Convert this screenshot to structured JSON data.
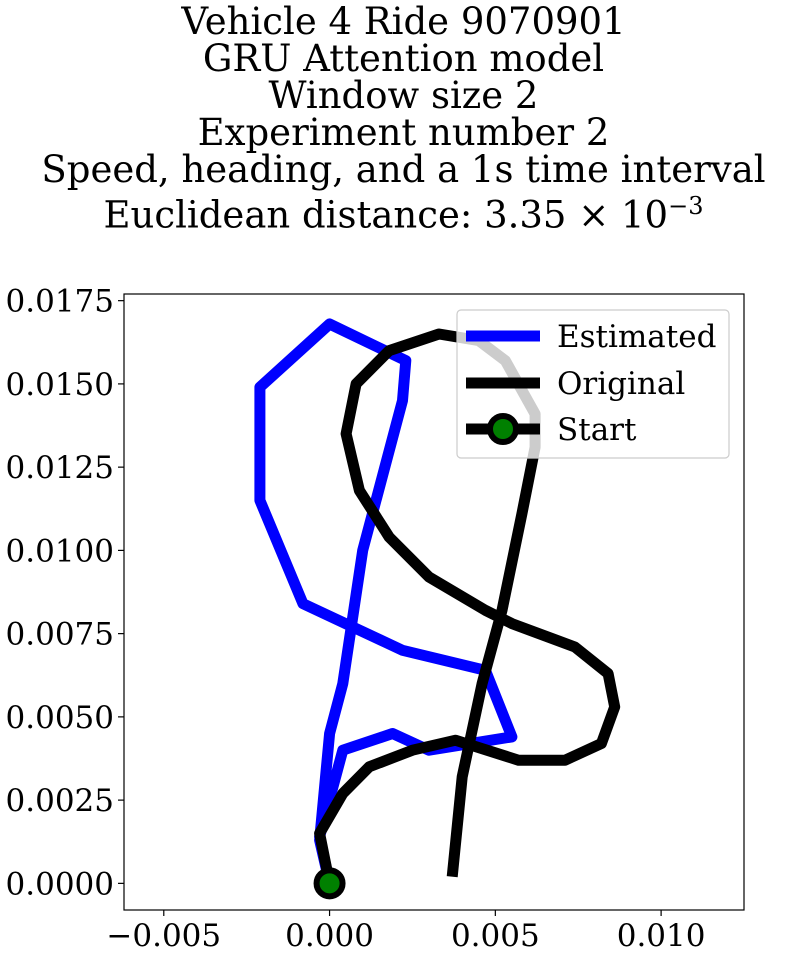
{
  "chart_data": {
    "type": "line",
    "title_lines": [
      "Vehicle 4 Ride 9070901",
      "GRU Attention model",
      "Window size 2",
      "Experiment number 2",
      "Speed, heading, and a 1s time interval"
    ],
    "metric_label": "Euclidean distance: 3.35 × 10",
    "metric_exponent": "−3",
    "xlim": [
      -0.0062,
      0.0125
    ],
    "ylim": [
      -0.0008,
      0.0177
    ],
    "x_ticks": [
      {
        "value": -0.005,
        "label": "−0.005"
      },
      {
        "value": 0.0,
        "label": "0.000"
      },
      {
        "value": 0.005,
        "label": "0.005"
      },
      {
        "value": 0.01,
        "label": "0.010"
      }
    ],
    "y_ticks": [
      {
        "value": 0.0,
        "label": "0.0000"
      },
      {
        "value": 0.0025,
        "label": "0.0025"
      },
      {
        "value": 0.005,
        "label": "0.0050"
      },
      {
        "value": 0.0075,
        "label": "0.0075"
      },
      {
        "value": 0.01,
        "label": "0.0100"
      },
      {
        "value": 0.0125,
        "label": "0.0125"
      },
      {
        "value": 0.015,
        "label": "0.0150"
      },
      {
        "value": 0.0175,
        "label": "0.0175"
      }
    ],
    "grid": false,
    "legend_position": "top-right",
    "series": [
      {
        "name": "Estimated",
        "color": "#0000ff",
        "points": [
          [
            0.0,
            0.0
          ],
          [
            -0.0003,
            0.0013
          ],
          [
            0.0,
            0.0045
          ],
          [
            0.0004,
            0.006
          ],
          [
            0.001,
            0.01
          ],
          [
            0.0022,
            0.0145
          ],
          [
            0.0023,
            0.0157
          ],
          [
            0.0,
            0.0168
          ],
          [
            -0.0021,
            0.0149
          ],
          [
            -0.0021,
            0.0115
          ],
          [
            -0.0008,
            0.0084
          ],
          [
            0.0022,
            0.007
          ],
          [
            0.0047,
            0.0064
          ],
          [
            0.0055,
            0.0044
          ],
          [
            0.003,
            0.004
          ],
          [
            0.0019,
            0.0045
          ],
          [
            0.0004,
            0.004
          ],
          [
            -0.0003,
            0.0014
          ],
          [
            0.0,
            0.0
          ]
        ]
      },
      {
        "name": "Original",
        "color": "#000000",
        "points": [
          [
            0.0,
            0.0
          ],
          [
            -0.0003,
            0.0015
          ],
          [
            0.0004,
            0.0027
          ],
          [
            0.0012,
            0.0035
          ],
          [
            0.0025,
            0.004
          ],
          [
            0.0038,
            0.0043
          ],
          [
            0.0057,
            0.0037
          ],
          [
            0.0071,
            0.0037
          ],
          [
            0.0082,
            0.0042
          ],
          [
            0.0086,
            0.0053
          ],
          [
            0.0084,
            0.0063
          ],
          [
            0.0074,
            0.0071
          ],
          [
            0.0055,
            0.0078
          ],
          [
            0.0047,
            0.0082
          ],
          [
            0.003,
            0.0092
          ],
          [
            0.0018,
            0.0104
          ],
          [
            0.0009,
            0.0118
          ],
          [
            0.0005,
            0.0135
          ],
          [
            0.0008,
            0.015
          ],
          [
            0.0018,
            0.016
          ],
          [
            0.0033,
            0.0165
          ],
          [
            0.0045,
            0.0163
          ],
          [
            0.0053,
            0.0157
          ],
          [
            0.0062,
            0.0141
          ],
          [
            0.0062,
            0.0131
          ],
          [
            0.0058,
            0.0111
          ],
          [
            0.0052,
            0.0082
          ],
          [
            0.0046,
            0.006
          ],
          [
            0.004,
            0.0032
          ],
          [
            0.0037,
            0.0002
          ]
        ]
      },
      {
        "name": "Start",
        "color": "#000000",
        "marker_fill": "#008000",
        "points": [
          [
            0.0,
            0.0
          ]
        ]
      }
    ]
  }
}
